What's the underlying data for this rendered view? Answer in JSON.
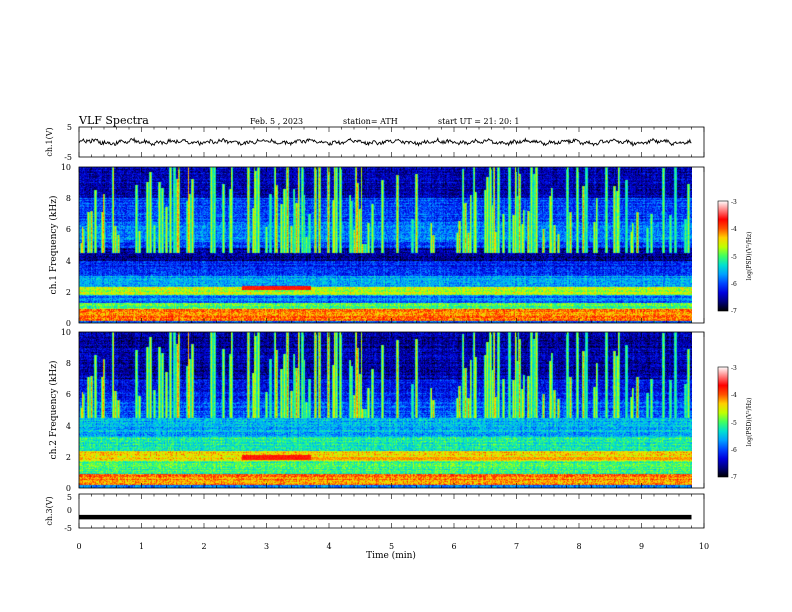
{
  "header": {
    "title": "VLF Spectra",
    "date": "Feb. 5 , 2023",
    "station": "station= ATH",
    "start_ut": "start UT =   21: 20: 1"
  },
  "colors": {
    "colormap": [
      "#000000",
      "#00007a",
      "#0000dd",
      "#0044ff",
      "#00a0ff",
      "#00e0d0",
      "#40ff60",
      "#c0ff00",
      "#ffd000",
      "#ff5000",
      "#ff0000",
      "#ff8080",
      "#ffffff"
    ],
    "trace": "#000000"
  },
  "chart_data": [
    {
      "type": "line",
      "panel": "ch1-waveform",
      "ylabel": "ch.1(V)",
      "ylim": [
        -5,
        5
      ],
      "yticks": [
        "5",
        "-5"
      ],
      "xlim": [
        0,
        10
      ],
      "series": [
        {
          "x": [
            0,
            9.8
          ],
          "y": [
            0,
            0
          ]
        }
      ]
    },
    {
      "type": "heatmap",
      "panel": "ch1-spectrogram",
      "ylabel": "ch.1 Frequency (kHz)",
      "ylim": [
        0,
        10
      ],
      "yticks": [
        "0",
        "2",
        "4",
        "6",
        "8",
        "10"
      ],
      "xlim": [
        0,
        10
      ],
      "x_end": 9.8,
      "bands_khz": [
        {
          "f": [
            0.0,
            0.15
          ],
          "level": 0.3
        },
        {
          "f": [
            0.15,
            0.9
          ],
          "level": 0.72
        },
        {
          "f": [
            0.9,
            1.3
          ],
          "level": 0.5
        },
        {
          "f": [
            1.3,
            1.8
          ],
          "level": 0.3
        },
        {
          "f": [
            1.8,
            2.3
          ],
          "level": 0.58
        },
        {
          "f": [
            2.3,
            3.0
          ],
          "level": 0.34
        },
        {
          "f": [
            3.0,
            4.0
          ],
          "level": 0.22
        },
        {
          "f": [
            4.0,
            4.8
          ],
          "level": 0.1
        },
        {
          "f": [
            4.8,
            5.2
          ],
          "level": 0.24
        },
        {
          "f": [
            5.2,
            6.5
          ],
          "level": 0.3
        },
        {
          "f": [
            6.5,
            8.0
          ],
          "level": 0.24
        },
        {
          "f": [
            8.0,
            10.0
          ],
          "level": 0.14
        }
      ],
      "events": [
        {
          "t": [
            2.6,
            3.7
          ],
          "f": [
            2.1,
            2.4
          ],
          "level": 0.82
        }
      ],
      "colorbar": {
        "label": "log(PSD)(V²/Hz)",
        "range": [
          -7,
          -3
        ],
        "ticks": [
          "-3",
          "-4",
          "-5",
          "-6",
          "-7"
        ]
      }
    },
    {
      "type": "heatmap",
      "panel": "ch2-spectrogram",
      "ylabel": "ch.2 Frequency (kHz)",
      "ylim": [
        0,
        10
      ],
      "yticks": [
        "0",
        "2",
        "4",
        "6",
        "8",
        "10"
      ],
      "xlim": [
        0,
        10
      ],
      "x_end": 9.8,
      "bands_khz": [
        {
          "f": [
            0.0,
            0.2
          ],
          "level": 0.3
        },
        {
          "f": [
            0.2,
            0.9
          ],
          "level": 0.72
        },
        {
          "f": [
            0.9,
            1.7
          ],
          "level": 0.48
        },
        {
          "f": [
            1.7,
            2.4
          ],
          "level": 0.65
        },
        {
          "f": [
            2.4,
            3.3
          ],
          "level": 0.44
        },
        {
          "f": [
            3.3,
            4.5
          ],
          "level": 0.36
        },
        {
          "f": [
            4.5,
            5.5
          ],
          "level": 0.26
        },
        {
          "f": [
            5.5,
            7.0
          ],
          "level": 0.2
        },
        {
          "f": [
            7.0,
            10.0
          ],
          "level": 0.12
        }
      ],
      "events": [
        {
          "t": [
            2.6,
            3.7
          ],
          "f": [
            1.8,
            2.1
          ],
          "level": 0.82
        },
        {
          "t": [
            3.7,
            9.8
          ],
          "f": [
            1.8,
            2.0
          ],
          "level": 0.7
        }
      ],
      "colorbar": {
        "label": "log(PSD)(V²/Hz)",
        "range": [
          -7,
          -3
        ],
        "ticks": [
          "-3",
          "-4",
          "-5",
          "-6",
          "-7"
        ]
      }
    },
    {
      "type": "line",
      "panel": "ch3-waveform",
      "ylabel": "ch.3(V)",
      "ylim": [
        -5,
        5
      ],
      "yticks": [
        "5",
        "0",
        "-5"
      ],
      "xlim": [
        0,
        10
      ],
      "xlabel": "Time  (min)",
      "xticks": [
        "0",
        "1",
        "2",
        "3",
        "4",
        "5",
        "6",
        "7",
        "8",
        "9",
        "10"
      ],
      "series": [
        {
          "x": [
            0,
            9.8
          ],
          "y": [
            -1.8,
            -1.8
          ]
        }
      ]
    }
  ]
}
